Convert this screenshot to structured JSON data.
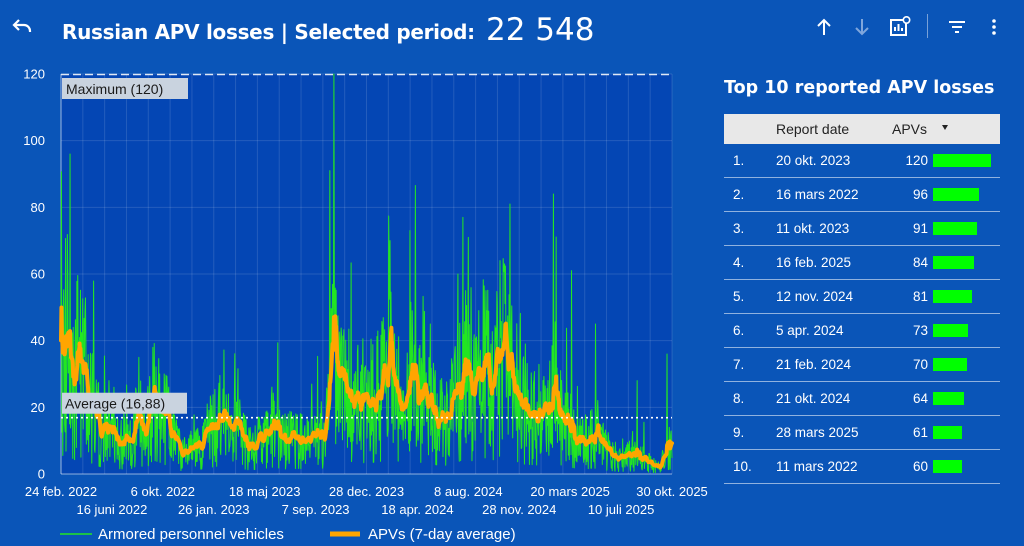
{
  "header": {
    "title": "Russian APV losses | Selected period:",
    "total": "22 548"
  },
  "icons": [
    "undo-icon",
    "arrow-up-icon",
    "arrow-down-icon",
    "chart-settings-icon",
    "filter-icon",
    "more-vert-icon"
  ],
  "colors": {
    "background": "#0a55b8",
    "plot_background": "#0446b4",
    "daily_series": "#22e622",
    "average_series": "#ffa500",
    "rank_bar": "#00ff00"
  },
  "chart_data": {
    "type": "line",
    "xlabel": "",
    "ylabel": "",
    "ylim": [
      0,
      120
    ],
    "yticks": [
      0,
      20,
      40,
      60,
      80,
      100,
      120
    ],
    "xlim": [
      "2022-02-24",
      "2025-11-05"
    ],
    "xticks_row1": [
      "24 feb. 2022",
      "6 okt. 2022",
      "18 maj 2023",
      "28 dec. 2023",
      "8 aug. 2024",
      "20 mars 2025",
      "30 okt. 2025"
    ],
    "xticks_row2": [
      "16 juni 2022",
      "26 jan. 2023",
      "7 sep. 2023",
      "18 apr. 2024",
      "28 nov. 2024",
      "10 juli 2025"
    ],
    "grid": true,
    "legend_position": "bottom",
    "reference_lines": [
      {
        "label": "Maximum (120)",
        "value": 120
      },
      {
        "label": "Average (16,88)",
        "value": 16.88
      }
    ],
    "series": [
      {
        "name": "Armored personnel vehicles",
        "kind": "daily"
      },
      {
        "name": "APVs (7-day average)",
        "kind": "average"
      }
    ],
    "daily_peaks": [
      [
        "2022-02-24",
        50
      ],
      [
        "2022-03-11",
        60
      ],
      [
        "2022-03-16",
        96
      ],
      [
        "2022-04-20",
        40
      ],
      [
        "2022-06-10",
        28
      ],
      [
        "2022-08-15",
        35
      ],
      [
        "2022-09-15",
        38
      ],
      [
        "2022-10-10",
        30
      ],
      [
        "2023-03-01",
        24
      ],
      [
        "2023-06-15",
        18
      ],
      [
        "2023-10-11",
        91
      ],
      [
        "2023-10-20",
        120
      ],
      [
        "2023-11-10",
        40
      ],
      [
        "2024-02-21",
        70
      ],
      [
        "2024-04-05",
        73
      ],
      [
        "2024-05-20",
        45
      ],
      [
        "2024-07-20",
        60
      ],
      [
        "2024-09-20",
        55
      ],
      [
        "2024-10-21",
        64
      ],
      [
        "2024-11-12",
        81
      ],
      [
        "2025-02-16",
        84
      ],
      [
        "2025-03-28",
        61
      ],
      [
        "2025-05-20",
        45
      ],
      [
        "2025-08-20",
        28
      ],
      [
        "2025-10-25",
        36
      ]
    ],
    "average_keypoints": [
      [
        "2022-02-24",
        32
      ],
      [
        "2022-03-08",
        47
      ],
      [
        "2022-03-25",
        28
      ],
      [
        "2022-04-05",
        36
      ],
      [
        "2022-04-25",
        25
      ],
      [
        "2022-05-20",
        15
      ],
      [
        "2022-06-25",
        11
      ],
      [
        "2022-07-25",
        9
      ],
      [
        "2022-08-15",
        18
      ],
      [
        "2022-09-01",
        12
      ],
      [
        "2022-09-15",
        28
      ],
      [
        "2022-10-05",
        22
      ],
      [
        "2022-10-25",
        13
      ],
      [
        "2022-11-20",
        6
      ],
      [
        "2022-12-20",
        8
      ],
      [
        "2023-01-25",
        14
      ],
      [
        "2023-02-20",
        18
      ],
      [
        "2023-03-20",
        14
      ],
      [
        "2023-04-15",
        8
      ],
      [
        "2023-05-10",
        10
      ],
      [
        "2023-06-10",
        14
      ],
      [
        "2023-07-01",
        10
      ],
      [
        "2023-08-01",
        11
      ],
      [
        "2023-09-01",
        10
      ],
      [
        "2023-09-30",
        12
      ],
      [
        "2023-10-12",
        25
      ],
      [
        "2023-10-20",
        38
      ],
      [
        "2023-11-05",
        30
      ],
      [
        "2023-12-01",
        24
      ],
      [
        "2024-01-05",
        22
      ],
      [
        "2024-02-05",
        26
      ],
      [
        "2024-02-25",
        34
      ],
      [
        "2024-03-20",
        20
      ],
      [
        "2024-04-10",
        30
      ],
      [
        "2024-04-30",
        23
      ],
      [
        "2024-05-25",
        20
      ],
      [
        "2024-06-15",
        16
      ],
      [
        "2024-07-15",
        22
      ],
      [
        "2024-08-05",
        31
      ],
      [
        "2024-08-25",
        25
      ],
      [
        "2024-09-15",
        33
      ],
      [
        "2024-10-05",
        28
      ],
      [
        "2024-10-25",
        38
      ],
      [
        "2024-11-15",
        30
      ],
      [
        "2024-12-10",
        20
      ],
      [
        "2025-01-10",
        18
      ],
      [
        "2025-02-10",
        22
      ],
      [
        "2025-03-05",
        18
      ],
      [
        "2025-03-30",
        13
      ],
      [
        "2025-04-20",
        9
      ],
      [
        "2025-05-15",
        12
      ],
      [
        "2025-06-10",
        8
      ],
      [
        "2025-07-10",
        5
      ],
      [
        "2025-08-10",
        6
      ],
      [
        "2025-09-10",
        4
      ],
      [
        "2025-10-10",
        2
      ],
      [
        "2025-10-25",
        8
      ],
      [
        "2025-11-03",
        10
      ]
    ]
  },
  "ranking": {
    "title": "Top 10 reported APV losses",
    "col_date": "Report date",
    "col_value": "APVs",
    "max": 120,
    "rows": [
      {
        "rank": "1.",
        "date": "20 okt. 2023",
        "value": 120
      },
      {
        "rank": "2.",
        "date": "16 mars 2022",
        "value": 96
      },
      {
        "rank": "3.",
        "date": "11 okt. 2023",
        "value": 91
      },
      {
        "rank": "4.",
        "date": "16 feb. 2025",
        "value": 84
      },
      {
        "rank": "5.",
        "date": "12 nov. 2024",
        "value": 81
      },
      {
        "rank": "6.",
        "date": "5 apr. 2024",
        "value": 73
      },
      {
        "rank": "7.",
        "date": "21 feb. 2024",
        "value": 70
      },
      {
        "rank": "8.",
        "date": "21 okt. 2024",
        "value": 64
      },
      {
        "rank": "9.",
        "date": "28 mars 2025",
        "value": 61
      },
      {
        "rank": "10.",
        "date": "11 mars 2022",
        "value": 60
      }
    ]
  }
}
